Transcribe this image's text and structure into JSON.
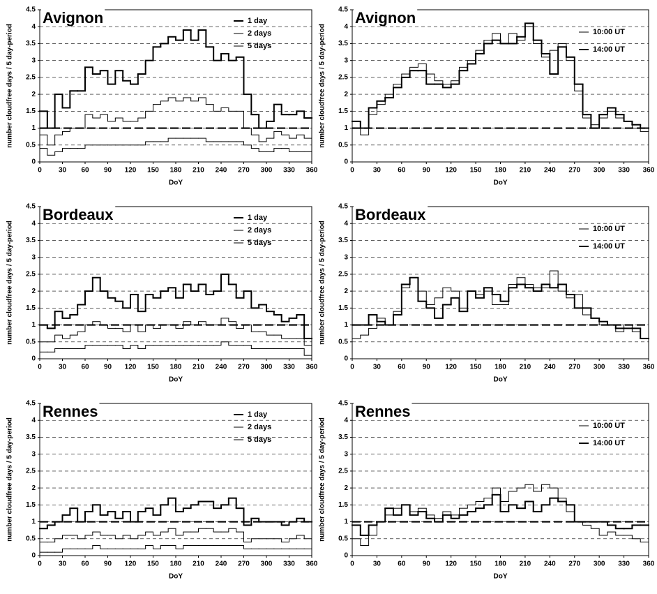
{
  "chart_data": [
    {
      "type": "step",
      "title": "Avignon",
      "xlabel": "DoY",
      "ylabel": "number cloudfree days / 5 day-period",
      "legend": "upper right",
      "grid": true,
      "reference_line": 1,
      "xlim": [
        0,
        360
      ],
      "xticks": [
        0,
        30,
        60,
        90,
        120,
        150,
        180,
        210,
        240,
        270,
        300,
        330,
        360
      ],
      "ylim": [
        0,
        4.5
      ],
      "yticks": [
        0,
        0.5,
        1,
        1.5,
        2,
        2.5,
        3,
        3.5,
        4,
        4.5
      ],
      "x": [
        0,
        10,
        20,
        30,
        40,
        50,
        60,
        70,
        80,
        90,
        100,
        110,
        120,
        130,
        140,
        150,
        160,
        170,
        180,
        190,
        200,
        210,
        220,
        230,
        240,
        250,
        260,
        270,
        280,
        290,
        300,
        310,
        320,
        330,
        340,
        350
      ],
      "series": [
        {
          "name": "1 day",
          "color": "#000000",
          "line_width": 2,
          "values": [
            1.5,
            1.0,
            2.0,
            1.6,
            2.1,
            2.1,
            2.8,
            2.6,
            2.7,
            2.3,
            2.7,
            2.4,
            2.3,
            2.6,
            3.0,
            3.4,
            3.5,
            3.7,
            3.6,
            3.9,
            3.6,
            3.9,
            3.4,
            3.0,
            3.2,
            3.0,
            3.1,
            2.0,
            1.4,
            1.0,
            1.2,
            1.7,
            1.4,
            1.4,
            1.5,
            1.3
          ]
        },
        {
          "name": "2 days",
          "color": "#000000",
          "line_width": 1,
          "values": [
            0.8,
            0.5,
            0.8,
            0.9,
            1.0,
            1.0,
            1.4,
            1.3,
            1.4,
            1.2,
            1.3,
            1.2,
            1.2,
            1.3,
            1.5,
            1.7,
            1.8,
            1.9,
            1.8,
            1.9,
            1.8,
            1.9,
            1.7,
            1.5,
            1.6,
            1.5,
            1.5,
            1.0,
            0.8,
            0.6,
            0.7,
            0.9,
            0.8,
            0.7,
            0.8,
            0.7
          ]
        },
        {
          "name": "5 days",
          "color": "#000000",
          "line_width": 1,
          "values": [
            0.4,
            0.2,
            0.3,
            0.4,
            0.4,
            0.4,
            0.5,
            0.5,
            0.5,
            0.5,
            0.5,
            0.5,
            0.5,
            0.5,
            0.6,
            0.6,
            0.6,
            0.7,
            0.7,
            0.7,
            0.7,
            0.7,
            0.6,
            0.6,
            0.6,
            0.6,
            0.6,
            0.5,
            0.4,
            0.3,
            0.3,
            0.4,
            0.4,
            0.3,
            0.3,
            0.3
          ]
        }
      ]
    },
    {
      "type": "step",
      "title": "Avignon",
      "xlabel": "DoY",
      "ylabel": "number cloudfree days / 5 day-period",
      "legend": "upper right",
      "grid": true,
      "reference_line": 1,
      "xlim": [
        0,
        360
      ],
      "xticks": [
        0,
        30,
        60,
        90,
        120,
        150,
        180,
        210,
        240,
        270,
        300,
        330,
        360
      ],
      "ylim": [
        0,
        4.5
      ],
      "yticks": [
        0,
        0.5,
        1,
        1.5,
        2,
        2.5,
        3,
        3.5,
        4,
        4.5
      ],
      "x": [
        0,
        10,
        20,
        30,
        40,
        50,
        60,
        70,
        80,
        90,
        100,
        110,
        120,
        130,
        140,
        150,
        160,
        170,
        180,
        190,
        200,
        210,
        220,
        230,
        240,
        250,
        260,
        270,
        280,
        290,
        300,
        310,
        320,
        330,
        340,
        350
      ],
      "series": [
        {
          "name": "10:00 UT",
          "color": "#000000",
          "line_width": 1,
          "values": [
            1.0,
            0.8,
            1.4,
            1.7,
            2.0,
            2.3,
            2.6,
            2.8,
            2.9,
            2.6,
            2.4,
            2.3,
            2.4,
            2.8,
            3.0,
            3.3,
            3.6,
            3.8,
            3.5,
            3.8,
            3.6,
            4.0,
            3.5,
            3.1,
            3.3,
            3.5,
            3.0,
            2.1,
            1.3,
            1.1,
            1.3,
            1.5,
            1.3,
            1.2,
            1.0,
            0.9
          ]
        },
        {
          "name": "14:00 UT",
          "color": "#000000",
          "line_width": 2,
          "values": [
            1.2,
            1.0,
            1.6,
            1.8,
            1.9,
            2.2,
            2.5,
            2.7,
            2.7,
            2.3,
            2.3,
            2.2,
            2.3,
            2.7,
            2.9,
            3.2,
            3.5,
            3.6,
            3.5,
            3.5,
            3.7,
            4.1,
            3.6,
            3.2,
            2.6,
            3.4,
            3.1,
            2.3,
            1.4,
            1.0,
            1.4,
            1.6,
            1.4,
            1.2,
            1.1,
            1.0
          ]
        }
      ]
    },
    {
      "type": "step",
      "title": "Bordeaux",
      "xlabel": "DoY",
      "ylabel": "number cloudfree days / 5 day-period",
      "legend": "upper right",
      "grid": true,
      "reference_line": 1,
      "xlim": [
        0,
        360
      ],
      "xticks": [
        0,
        30,
        60,
        90,
        120,
        150,
        180,
        210,
        240,
        270,
        300,
        330,
        360
      ],
      "ylim": [
        0,
        4.5
      ],
      "yticks": [
        0,
        0.5,
        1,
        1.5,
        2,
        2.5,
        3,
        3.5,
        4,
        4.5
      ],
      "x": [
        0,
        10,
        20,
        30,
        40,
        50,
        60,
        70,
        80,
        90,
        100,
        110,
        120,
        130,
        140,
        150,
        160,
        170,
        180,
        190,
        200,
        210,
        220,
        230,
        240,
        250,
        260,
        270,
        280,
        290,
        300,
        310,
        320,
        330,
        340,
        350
      ],
      "series": [
        {
          "name": "1 day",
          "color": "#000000",
          "line_width": 2,
          "values": [
            1.0,
            0.9,
            1.4,
            1.2,
            1.3,
            1.6,
            2.0,
            2.4,
            2.0,
            1.8,
            1.7,
            1.5,
            1.9,
            1.4,
            1.9,
            1.8,
            2.0,
            2.1,
            1.8,
            2.2,
            2.0,
            2.2,
            1.9,
            2.0,
            2.5,
            2.2,
            1.8,
            2.0,
            1.5,
            1.6,
            1.4,
            1.3,
            1.1,
            1.2,
            1.3,
            0.6
          ]
        },
        {
          "name": "2 days",
          "color": "#000000",
          "line_width": 1,
          "values": [
            0.5,
            0.5,
            0.7,
            0.6,
            0.7,
            0.8,
            1.0,
            1.1,
            1.0,
            0.9,
            0.9,
            0.8,
            1.0,
            0.8,
            1.0,
            0.9,
            1.0,
            1.0,
            0.9,
            1.1,
            1.0,
            1.1,
            1.0,
            1.0,
            1.2,
            1.1,
            0.9,
            1.0,
            0.8,
            0.8,
            0.7,
            0.7,
            0.6,
            0.6,
            0.6,
            0.4
          ]
        },
        {
          "name": "5 days",
          "color": "#000000",
          "line_width": 1,
          "values": [
            0.2,
            0.2,
            0.3,
            0.3,
            0.3,
            0.3,
            0.4,
            0.4,
            0.4,
            0.4,
            0.4,
            0.3,
            0.4,
            0.3,
            0.4,
            0.4,
            0.4,
            0.4,
            0.4,
            0.4,
            0.4,
            0.4,
            0.4,
            0.4,
            0.5,
            0.4,
            0.4,
            0.4,
            0.3,
            0.3,
            0.3,
            0.3,
            0.3,
            0.3,
            0.3,
            0.1
          ]
        }
      ]
    },
    {
      "type": "step",
      "title": "Bordeaux",
      "xlabel": "DoY",
      "ylabel": "number cloudfree days / 5 day-period",
      "legend": "upper right",
      "grid": true,
      "reference_line": 1,
      "xlim": [
        0,
        360
      ],
      "xticks": [
        0,
        30,
        60,
        90,
        120,
        150,
        180,
        210,
        240,
        270,
        300,
        330,
        360
      ],
      "ylim": [
        0,
        4.5
      ],
      "yticks": [
        0,
        0.5,
        1,
        1.5,
        2,
        2.5,
        3,
        3.5,
        4,
        4.5
      ],
      "x": [
        0,
        10,
        20,
        30,
        40,
        50,
        60,
        70,
        80,
        90,
        100,
        110,
        120,
        130,
        140,
        150,
        160,
        170,
        180,
        190,
        200,
        210,
        220,
        230,
        240,
        250,
        260,
        270,
        280,
        290,
        300,
        310,
        320,
        330,
        340,
        350
      ],
      "series": [
        {
          "name": "10:00 UT",
          "color": "#000000",
          "line_width": 1,
          "values": [
            0.6,
            0.7,
            0.9,
            1.2,
            1.0,
            1.4,
            2.1,
            2.4,
            2.0,
            1.6,
            1.8,
            2.1,
            2.0,
            1.5,
            2.0,
            1.9,
            2.0,
            1.6,
            1.6,
            2.2,
            2.4,
            2.2,
            2.1,
            2.1,
            2.6,
            2.0,
            1.8,
            1.9,
            1.3,
            1.2,
            1.0,
            1.0,
            0.8,
            1.0,
            0.8,
            0.6
          ]
        },
        {
          "name": "14:00 UT",
          "color": "#000000",
          "line_width": 2,
          "values": [
            1.0,
            1.0,
            1.3,
            1.1,
            1.0,
            1.3,
            2.2,
            2.4,
            1.7,
            1.5,
            1.2,
            1.6,
            1.8,
            1.4,
            2.0,
            1.8,
            2.1,
            1.9,
            1.7,
            2.1,
            2.2,
            2.1,
            2.0,
            2.2,
            2.1,
            2.2,
            1.9,
            1.5,
            1.5,
            1.2,
            1.1,
            1.0,
            0.9,
            0.9,
            0.9,
            0.6
          ]
        }
      ]
    },
    {
      "type": "step",
      "title": "Rennes",
      "xlabel": "DoY",
      "ylabel": "number cloudfree days / 5 day-period",
      "legend": "upper right",
      "grid": true,
      "reference_line": 1,
      "xlim": [
        0,
        360
      ],
      "xticks": [
        0,
        30,
        60,
        90,
        120,
        150,
        180,
        210,
        240,
        270,
        300,
        330,
        360
      ],
      "ylim": [
        0,
        4.5
      ],
      "yticks": [
        0,
        0.5,
        1,
        1.5,
        2,
        2.5,
        3,
        3.5,
        4,
        4.5
      ],
      "x": [
        0,
        10,
        20,
        30,
        40,
        50,
        60,
        70,
        80,
        90,
        100,
        110,
        120,
        130,
        140,
        150,
        160,
        170,
        180,
        190,
        200,
        210,
        220,
        230,
        240,
        250,
        260,
        270,
        280,
        290,
        300,
        310,
        320,
        330,
        340,
        350
      ],
      "series": [
        {
          "name": "1 day",
          "color": "#000000",
          "line_width": 2,
          "values": [
            0.8,
            0.9,
            1.0,
            1.2,
            1.4,
            1.0,
            1.3,
            1.5,
            1.2,
            1.3,
            1.1,
            1.3,
            1.0,
            1.3,
            1.4,
            1.2,
            1.5,
            1.7,
            1.3,
            1.4,
            1.5,
            1.6,
            1.6,
            1.4,
            1.5,
            1.7,
            1.4,
            0.9,
            1.1,
            1.0,
            1.0,
            1.0,
            0.9,
            1.0,
            1.1,
            1.0
          ]
        },
        {
          "name": "2 days",
          "color": "#000000",
          "line_width": 1,
          "values": [
            0.4,
            0.4,
            0.5,
            0.6,
            0.6,
            0.5,
            0.6,
            0.7,
            0.6,
            0.6,
            0.5,
            0.6,
            0.5,
            0.6,
            0.7,
            0.6,
            0.7,
            0.8,
            0.6,
            0.7,
            0.7,
            0.8,
            0.8,
            0.7,
            0.7,
            0.8,
            0.7,
            0.4,
            0.5,
            0.5,
            0.5,
            0.5,
            0.4,
            0.5,
            0.6,
            0.5
          ]
        },
        {
          "name": "5 days",
          "color": "#000000",
          "line_width": 1,
          "values": [
            0.1,
            0.1,
            0.1,
            0.2,
            0.2,
            0.2,
            0.2,
            0.3,
            0.2,
            0.2,
            0.2,
            0.2,
            0.2,
            0.2,
            0.3,
            0.2,
            0.3,
            0.3,
            0.2,
            0.3,
            0.3,
            0.3,
            0.3,
            0.3,
            0.3,
            0.3,
            0.3,
            0.2,
            0.2,
            0.2,
            0.2,
            0.2,
            0.2,
            0.2,
            0.2,
            0.2
          ]
        }
      ]
    },
    {
      "type": "step",
      "title": "Rennes",
      "xlabel": "DoY",
      "ylabel": "number cloudfree days / 5 day-period",
      "legend": "upper right",
      "grid": true,
      "reference_line": 1,
      "xlim": [
        0,
        360
      ],
      "xticks": [
        0,
        30,
        60,
        90,
        120,
        150,
        180,
        210,
        240,
        270,
        300,
        330,
        360
      ],
      "ylim": [
        0,
        4.5
      ],
      "yticks": [
        0,
        0.5,
        1,
        1.5,
        2,
        2.5,
        3,
        3.5,
        4,
        4.5
      ],
      "x": [
        0,
        10,
        20,
        30,
        40,
        50,
        60,
        70,
        80,
        90,
        100,
        110,
        120,
        130,
        140,
        150,
        160,
        170,
        180,
        190,
        200,
        210,
        220,
        230,
        240,
        250,
        260,
        270,
        280,
        290,
        300,
        310,
        320,
        330,
        340,
        350
      ],
      "series": [
        {
          "name": "10:00 UT",
          "color": "#000000",
          "line_width": 1,
          "values": [
            0.5,
            0.3,
            0.6,
            1.0,
            1.2,
            1.4,
            1.5,
            1.3,
            1.4,
            1.2,
            1.1,
            1.3,
            1.2,
            1.4,
            1.5,
            1.6,
            1.7,
            2.0,
            1.6,
            1.9,
            2.0,
            2.1,
            1.9,
            2.1,
            2.0,
            1.7,
            1.3,
            1.0,
            0.9,
            0.8,
            0.6,
            0.7,
            0.6,
            0.6,
            0.5,
            0.4
          ]
        },
        {
          "name": "14:00 UT",
          "color": "#000000",
          "line_width": 2,
          "values": [
            0.9,
            0.6,
            0.9,
            1.0,
            1.4,
            1.2,
            1.5,
            1.2,
            1.3,
            1.1,
            1.0,
            1.2,
            1.1,
            1.2,
            1.3,
            1.4,
            1.5,
            1.8,
            1.3,
            1.5,
            1.4,
            1.6,
            1.3,
            1.5,
            1.7,
            1.6,
            1.5,
            1.0,
            1.0,
            1.0,
            1.0,
            0.9,
            0.8,
            0.8,
            0.9,
            0.9
          ]
        }
      ]
    }
  ]
}
